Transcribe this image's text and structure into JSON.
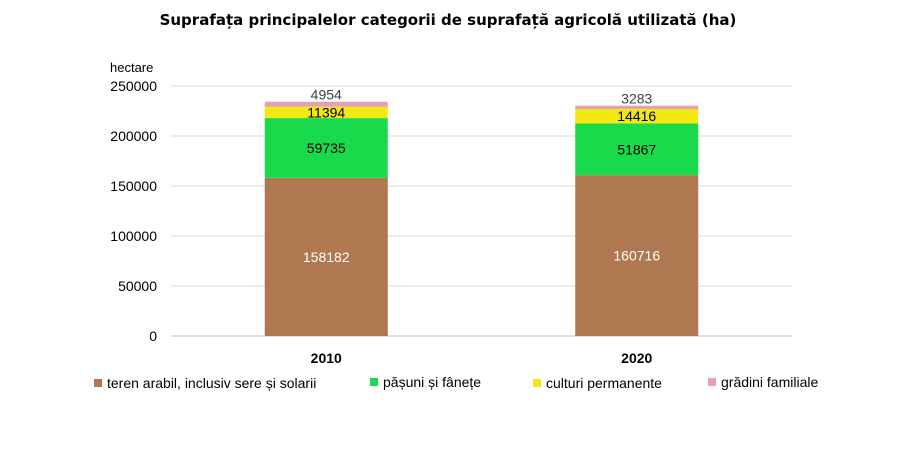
{
  "chart_data": {
    "type": "bar",
    "stacked": true,
    "title": "Suprafața principalelor categorii de suprafață agricolă utilizată (ha)",
    "ylabel": "hectare",
    "categories": [
      "2010",
      "2020"
    ],
    "ylim": [
      0,
      250000
    ],
    "yticks": [
      "0",
      "50000",
      "100000",
      "150000",
      "200000",
      "250000"
    ],
    "grid": true,
    "legend_position": "bottom",
    "series": [
      {
        "name": "teren arabil, inclusiv  sere și solarii",
        "values": [
          158182,
          160716
        ],
        "color": "#B07850",
        "label_color": "#ffffff"
      },
      {
        "name": "pășuni și fânețe",
        "values": [
          59735,
          51867
        ],
        "color": "#19DA4A",
        "label_color": "#000000"
      },
      {
        "name": "culturi permanente",
        "values": [
          11394,
          14416
        ],
        "color": "#F2E812",
        "label_color": "#000000"
      },
      {
        "name": "grădini familiale",
        "values": [
          4954,
          3283
        ],
        "color": "#E6A0B4",
        "label_color": "#404040"
      }
    ]
  }
}
